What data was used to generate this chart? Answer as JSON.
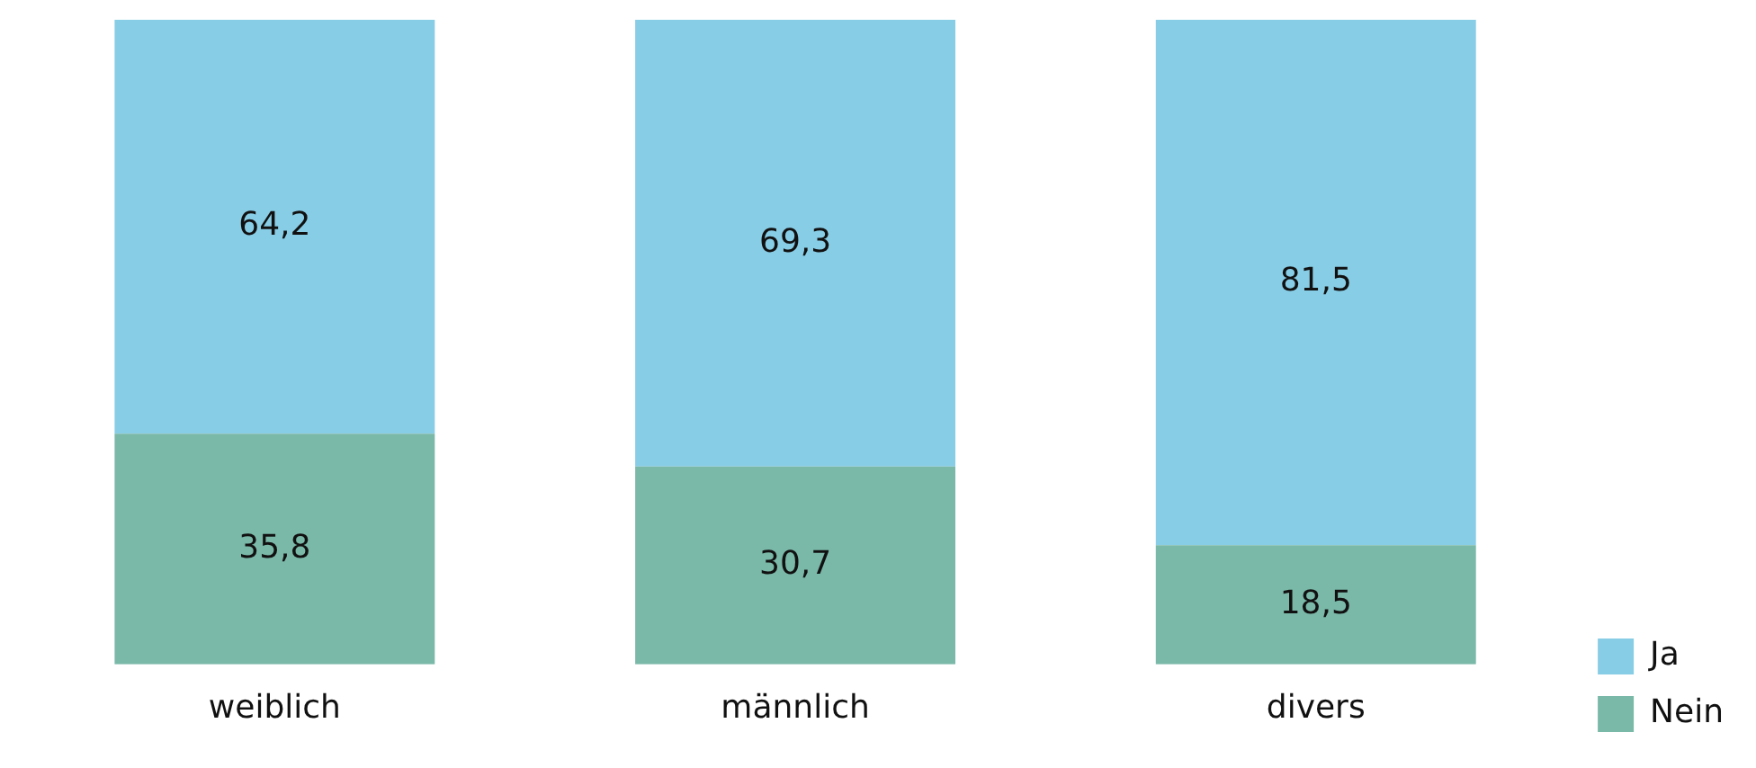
{
  "chart_data": {
    "type": "bar",
    "stacked": true,
    "categories": [
      "weiblich",
      "männlich",
      "divers"
    ],
    "series": [
      {
        "name": "Nein",
        "color": "#7ab8a8",
        "values": [
          35.8,
          30.7,
          18.5
        ],
        "value_labels": [
          "35,8",
          "30,7",
          "18,5"
        ]
      },
      {
        "name": "Ja",
        "color": "#88cde6",
        "values": [
          64.2,
          69.3,
          81.5
        ],
        "value_labels": [
          "64,2",
          "69,3",
          "81,5"
        ]
      }
    ],
    "legend": "bottom right",
    "grid": false
  }
}
